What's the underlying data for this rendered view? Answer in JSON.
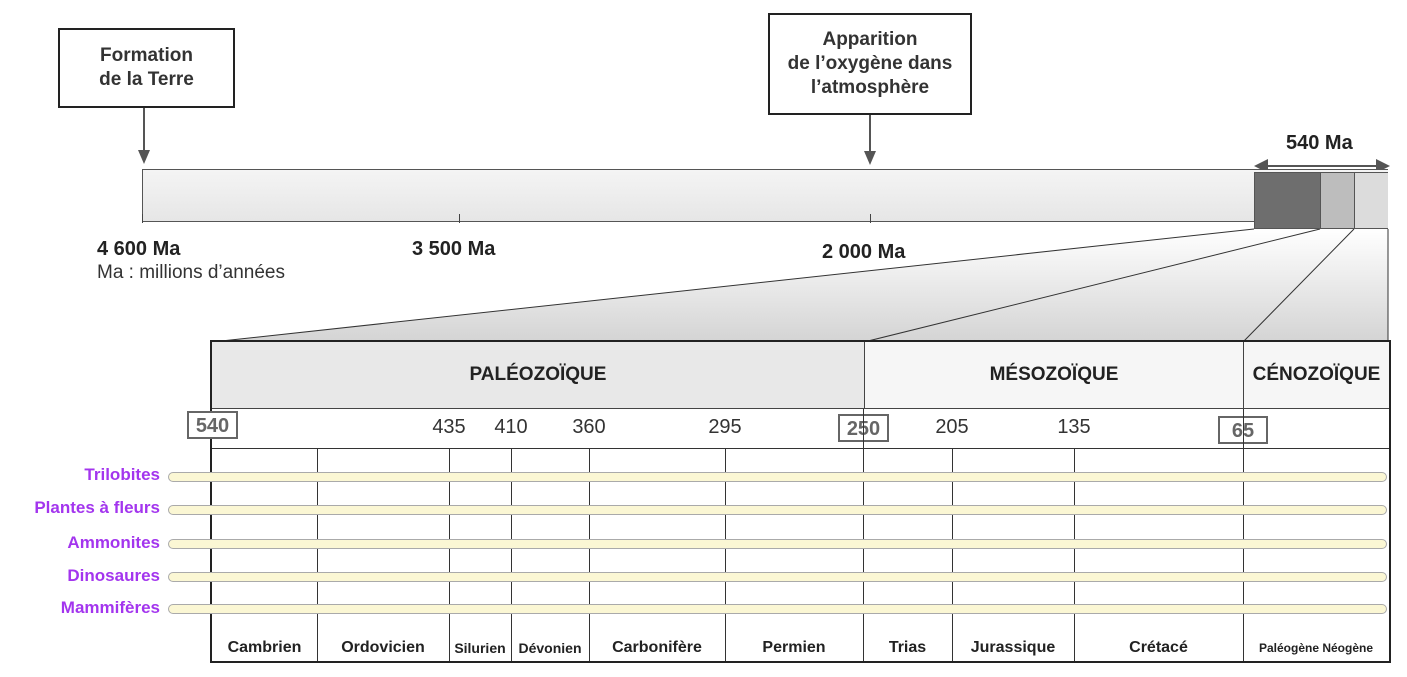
{
  "top": {
    "callout_formation": "Formation\nde la Terre",
    "callout_oxygene": "Apparition\nde l’oxygène dans\nl’atmosphère",
    "label_4600": "4 600 Ma",
    "label_3500": "3 500 Ma",
    "label_2000": "2 000 Ma",
    "label_540": "540 Ma",
    "note": "Ma : millions d’années"
  },
  "eras": {
    "paleozoique": "PALÉOZOÏQUE",
    "mesozoique": "MÉSOZOÏQUE",
    "cenozoique": "CÉNOZOÏQUE"
  },
  "boundaries": {
    "b540": "540",
    "b435": "435",
    "b410": "410",
    "b360": "360",
    "b295": "295",
    "b250": "250",
    "b205": "205",
    "b135": "135",
    "b65": "65"
  },
  "periods": {
    "cambrien": "Cambrien",
    "ordovicien": "Ordovicien",
    "silurien": "Silurien",
    "devonien": "Dévonien",
    "carbonifere": "Carbonifère",
    "permien": "Permien",
    "trias": "Trias",
    "jurassique": "Jurassique",
    "cretace": "Crétacé",
    "paleogene_neogene": "Paléogène Néogène"
  },
  "life_forms": [
    "Trilobites",
    "Plantes à fleurs",
    "Ammonites",
    "Dinosaures",
    "Mammifères"
  ],
  "colors": {
    "life_label": "#a335ee",
    "life_bar": "#fbf7d4",
    "paleozoic_segment": "#6e6e6e",
    "mesozoic_segment": "#bdbdbd"
  }
}
